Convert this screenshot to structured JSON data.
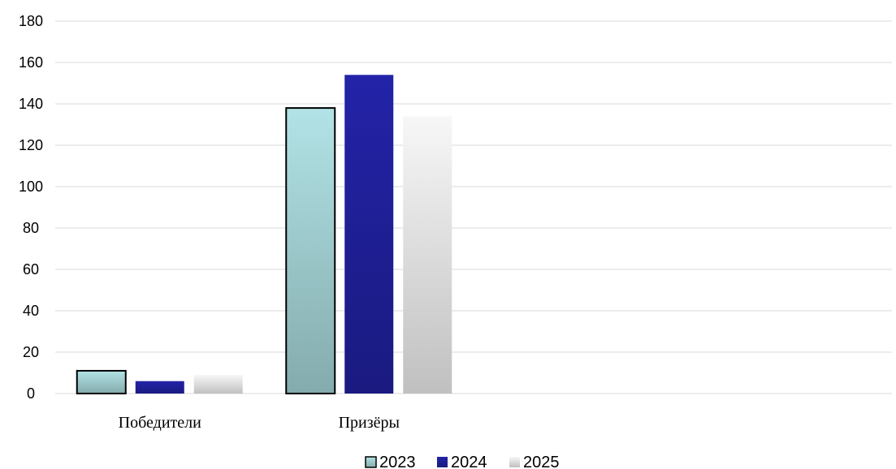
{
  "chart_data": {
    "type": "bar",
    "categories": [
      "Победители",
      "Призёры",
      "",
      ""
    ],
    "series": [
      {
        "name": "2023",
        "values": [
          11,
          138,
          null,
          null
        ],
        "color_top": "#b2e3e6",
        "color_bottom": "#84abad",
        "stroke": "#000000"
      },
      {
        "name": "2024",
        "values": [
          6,
          154,
          null,
          null
        ],
        "color_top": "#2323a8",
        "color_bottom": "#1a1a80",
        "stroke": "none"
      },
      {
        "name": "2025",
        "values": [
          9,
          134,
          null,
          null
        ],
        "color_top": "#f7f7f7",
        "color_bottom": "#c0c0c0",
        "stroke": "none"
      }
    ],
    "yticks": [
      "0",
      "20",
      "40",
      "60",
      "80",
      "100",
      "120",
      "140",
      "160",
      "180"
    ],
    "ylim": [
      0,
      180
    ],
    "grid": true,
    "legend": "bottom"
  }
}
